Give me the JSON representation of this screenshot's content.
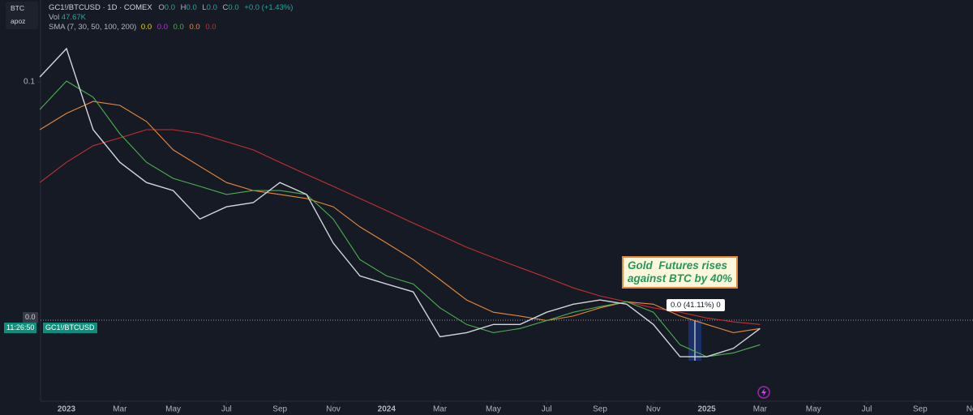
{
  "symbol_box": [
    "BTC",
    "apoz"
  ],
  "header": {
    "ticker": "GC1!/BTCUSD · 1D · COMEX",
    "ohlc": [
      {
        "label": "O",
        "value": "0.0"
      },
      {
        "label": "H",
        "value": "0.0"
      },
      {
        "label": "L",
        "value": "0.0"
      },
      {
        "label": "C",
        "value": "0.0"
      }
    ],
    "change": "+0.0 (+1.43%)",
    "vol_label": "Vol",
    "vol_value": "47.67K",
    "sma_label": "SMA (7, 30, 50, 100, 200)",
    "sma_values": [
      "0.0",
      "0.0",
      "0.0",
      "0.0",
      "0.0"
    ]
  },
  "price_tags": {
    "price": "0.0",
    "countdown": "11:26:50"
  },
  "annotation": [
    "Gold  Futures rises",
    "against BTC by 40%"
  ],
  "measure_label": "0.0 (41.11%) 0",
  "chart_data": {
    "type": "line",
    "log_scale": true,
    "x": [
      "2022-12",
      "2023-01",
      "2023-02",
      "2023-03",
      "2023-04",
      "2023-05",
      "2023-06",
      "2023-07",
      "2023-08",
      "2023-09",
      "2023-10",
      "2023-11",
      "2023-12",
      "2024-01",
      "2024-02",
      "2024-03",
      "2024-04",
      "2024-05",
      "2024-06",
      "2024-07",
      "2024-08",
      "2024-09",
      "2024-10",
      "2024-11",
      "2024-12",
      "2025-01",
      "2025-02",
      "2025-03"
    ],
    "series": [
      {
        "name": "GC1!/BTCUSD",
        "color": "#d1d4dc",
        "values": [
          0.1023,
          0.1168,
          0.08,
          0.0687,
          0.0625,
          0.0602,
          0.0527,
          0.0558,
          0.0569,
          0.0625,
          0.0591,
          0.0471,
          0.0404,
          0.0389,
          0.0375,
          0.0304,
          0.031,
          0.0322,
          0.0322,
          0.0341,
          0.0354,
          0.0361,
          0.0354,
          0.0322,
          0.0277,
          0.0277,
          0.0288,
          0.0316
        ]
      },
      {
        "color": "#4caf50",
        "values": [
          0.0879,
          0.1004,
          0.0931,
          0.0785,
          0.0687,
          0.0637,
          0.0614,
          0.0591,
          0.0602,
          0.0602,
          0.0591,
          0.0527,
          0.0436,
          0.0404,
          0.0389,
          0.0348,
          0.0322,
          0.031,
          0.0316,
          0.0328,
          0.0341,
          0.035,
          0.0358,
          0.0341,
          0.0293,
          0.0277,
          0.0282,
          0.0293
        ]
      },
      {
        "color": "#e8893a",
        "values": [
          0.08,
          0.0863,
          0.0913,
          0.0896,
          0.0831,
          0.0728,
          0.0674,
          0.0625,
          0.0602,
          0.0591,
          0.058,
          0.0558,
          0.0508,
          0.0471,
          0.0436,
          0.0397,
          0.0361,
          0.0341,
          0.0335,
          0.0328,
          0.0335,
          0.0348,
          0.0358,
          0.0354,
          0.0335,
          0.0322,
          0.031,
          0.0316
        ]
      },
      {
        "color": "#c2302f",
        "values": [
          0.0625,
          0.0687,
          0.0742,
          0.077,
          0.08,
          0.08,
          0.0785,
          0.0756,
          0.0728,
          0.0687,
          0.0649,
          0.0614,
          0.058,
          0.0548,
          0.0517,
          0.0489,
          0.0462,
          0.044,
          0.042,
          0.0401,
          0.0382,
          0.0368,
          0.0358,
          0.0348,
          0.0341,
          0.0332,
          0.0326,
          0.0322
        ]
      }
    ],
    "ylim": [
      0.0225,
      0.1466
    ],
    "yticks": [
      0.1
    ],
    "xticks": [
      {
        "value": "2023-01",
        "label": "2023"
      },
      {
        "value": "2023-03",
        "label": "Mar"
      },
      {
        "value": "2023-05",
        "label": "May"
      },
      {
        "value": "2023-07",
        "label": "Jul"
      },
      {
        "value": "2023-09",
        "label": "Sep"
      },
      {
        "value": "2023-11",
        "label": "Nov"
      },
      {
        "value": "2024-01",
        "label": "2024"
      },
      {
        "value": "2024-03",
        "label": "Mar"
      },
      {
        "value": "2024-05",
        "label": "May"
      },
      {
        "value": "2024-07",
        "label": "Jul"
      },
      {
        "value": "2024-09",
        "label": "Sep"
      },
      {
        "value": "2024-11",
        "label": "Nov"
      },
      {
        "value": "2025-01",
        "label": "2025"
      },
      {
        "value": "2025-03",
        "label": "Mar"
      },
      {
        "value": "2025-05",
        "label": "May"
      },
      {
        "value": "2025-07",
        "label": "Jul"
      },
      {
        "value": "2025-09",
        "label": "Sep"
      },
      {
        "value": "2025-11",
        "label": "Nov"
      }
    ]
  }
}
